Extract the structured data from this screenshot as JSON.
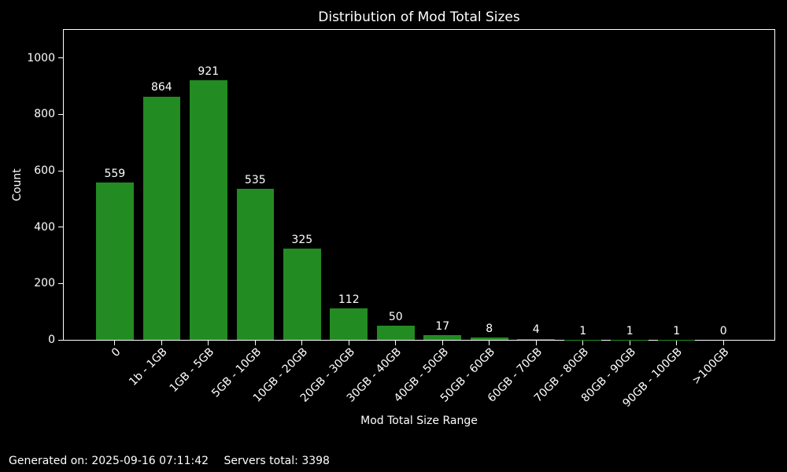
{
  "chart_data": {
    "type": "bar",
    "title": "Distribution of Mod Total Sizes",
    "xlabel": "Mod Total Size Range",
    "ylabel": "Count",
    "categories": [
      "0",
      "1b - 1GB",
      "1GB - 5GB",
      "5GB - 10GB",
      "10GB - 20GB",
      "20GB - 30GB",
      "30GB - 40GB",
      "40GB - 50GB",
      "50GB - 60GB",
      "60GB - 70GB",
      "70GB - 80GB",
      "80GB - 90GB",
      "90GB - 100GB",
      ">100GB"
    ],
    "values": [
      559,
      864,
      921,
      535,
      325,
      112,
      50,
      17,
      8,
      4,
      1,
      1,
      1,
      0
    ],
    "bar_labels": [
      "559",
      "864",
      "921",
      "535",
      "325",
      "112",
      "50",
      "17",
      "8",
      "4",
      "1",
      "1",
      "1",
      "0"
    ],
    "yticks": [
      0,
      200,
      400,
      600,
      800,
      1000
    ],
    "ytick_labels": [
      "0",
      "200",
      "400",
      "600",
      "800",
      "1000"
    ],
    "ylim": [
      0,
      1100
    ],
    "xlim_units": [
      -1.09,
      14.09
    ],
    "bar_width_units": 0.8,
    "xtick_rotation_deg": 45,
    "grid": false,
    "legend": null,
    "background_color": "#000000",
    "text_color": "#ffffff",
    "bar_color": "#228B22",
    "spine_color": "#ffffff"
  },
  "footer": {
    "generated": "Generated on: 2025-09-16 07:11:42",
    "servers_total": "Servers total: 3398"
  }
}
